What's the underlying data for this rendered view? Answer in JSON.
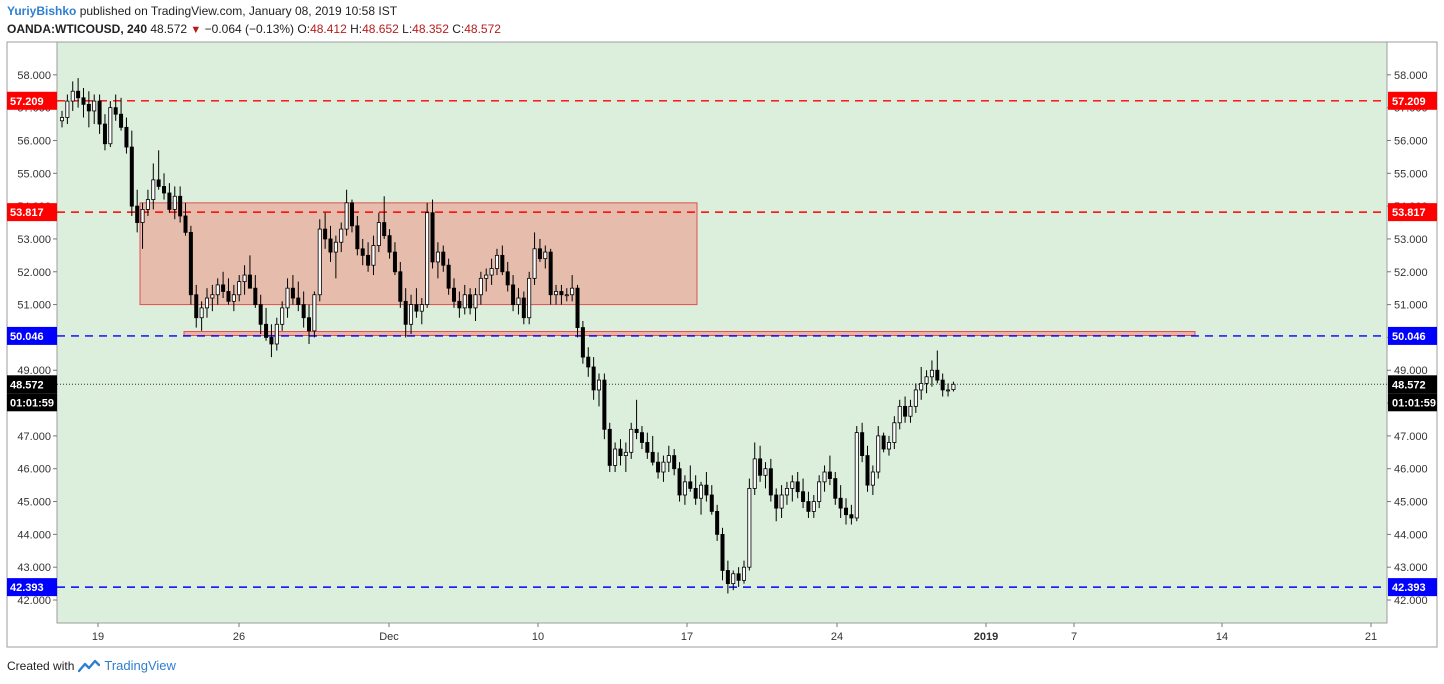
{
  "header": {
    "author": "YuriyBishko",
    "published": "published on TradingView.com, January 08, 2019 10:58 IST",
    "symbol": "OANDA:WTICOUSD, 240",
    "last": "48.572",
    "change": "−0.064 (−0.13%)",
    "o_label": "O:",
    "o_value": "48.412",
    "h_label": "H:",
    "h_value": "48.652",
    "l_label": "L:",
    "l_value": "48.352",
    "c_label": "C:",
    "c_value": "48.572"
  },
  "footer": {
    "created_with": "Created with",
    "brand": "TradingView"
  },
  "colors": {
    "background": "#dcefdc",
    "resistance": "#ff0000",
    "support": "#0000ff",
    "zone_fill": "#e8b4a4",
    "zone_stroke": "#e05050",
    "bull_body": "#ffffff",
    "bear_body": "#000000",
    "wick": "#000000",
    "last_label": "#000000"
  },
  "chart_data": {
    "type": "candlestick",
    "instrument": "OANDA:WTICOUSD",
    "timeframe": "240",
    "ylim": [
      41.3,
      59.0
    ],
    "y_ticks": [
      "42.000",
      "43.000",
      "44.000",
      "45.000",
      "46.000",
      "47.000",
      "48.000",
      "49.000",
      "50.000",
      "51.000",
      "52.000",
      "53.000",
      "54.000",
      "55.000",
      "56.000",
      "57.000",
      "58.000"
    ],
    "x_ticks": [
      "19",
      "26",
      "Dec",
      "10",
      "17",
      "24",
      "2019",
      "7",
      "14",
      "21"
    ],
    "x_tick_bold": [
      "2019"
    ],
    "grid": false,
    "horizontal_levels": [
      {
        "value": "57.209",
        "kind": "resistance"
      },
      {
        "value": "53.817",
        "kind": "resistance"
      },
      {
        "value": "50.046",
        "kind": "support"
      },
      {
        "value": "42.393",
        "kind": "support"
      }
    ],
    "last_price_label": "48.572",
    "countdown_label": "01:01:59",
    "zones": [
      {
        "x_from": "Nov 21",
        "x_to": "Dec 17",
        "y_low": 51.0,
        "y_high": 54.1,
        "note": "consolidation range"
      },
      {
        "x_from": "Nov 23",
        "x_to": "Jan 12",
        "y_low": 50.0,
        "y_high": 50.15,
        "note": "support strip"
      }
    ],
    "candles": [
      [
        56.6,
        56.9,
        56.4,
        56.7
      ],
      [
        56.7,
        57.4,
        56.5,
        57.2
      ],
      [
        57.2,
        57.8,
        56.9,
        57.5
      ],
      [
        57.5,
        57.9,
        57.0,
        57.3
      ],
      [
        57.3,
        57.6,
        56.7,
        57.1
      ],
      [
        57.1,
        57.5,
        56.4,
        56.9
      ],
      [
        56.9,
        57.4,
        56.5,
        57.2
      ],
      [
        57.2,
        57.4,
        56.2,
        56.5
      ],
      [
        56.5,
        56.8,
        55.7,
        55.9
      ],
      [
        55.9,
        57.2,
        55.8,
        57.0
      ],
      [
        57.0,
        57.4,
        56.6,
        56.8
      ],
      [
        56.8,
        57.3,
        56.3,
        56.4
      ],
      [
        56.4,
        56.7,
        55.6,
        55.8
      ],
      [
        55.8,
        56.3,
        53.7,
        54.0
      ],
      [
        54.0,
        54.5,
        53.2,
        53.5
      ],
      [
        53.5,
        54.1,
        52.7,
        53.9
      ],
      [
        53.9,
        54.5,
        53.7,
        54.2
      ],
      [
        54.2,
        55.3,
        53.9,
        54.8
      ],
      [
        54.8,
        55.7,
        54.5,
        54.6
      ],
      [
        54.6,
        55.0,
        54.2,
        54.4
      ],
      [
        54.4,
        54.7,
        53.8,
        53.9
      ],
      [
        53.9,
        54.6,
        53.6,
        54.3
      ],
      [
        54.3,
        54.6,
        53.5,
        53.7
      ],
      [
        53.7,
        54.1,
        53.1,
        53.2
      ],
      [
        53.2,
        53.4,
        51.0,
        51.3
      ],
      [
        51.3,
        51.6,
        50.3,
        50.6
      ],
      [
        50.6,
        51.1,
        50.2,
        50.9
      ],
      [
        50.9,
        51.5,
        50.6,
        51.2
      ],
      [
        51.2,
        51.6,
        50.8,
        51.3
      ],
      [
        51.3,
        51.8,
        51.0,
        51.6
      ],
      [
        51.6,
        52.0,
        51.2,
        51.4
      ],
      [
        51.4,
        51.8,
        51.0,
        51.1
      ],
      [
        51.1,
        51.6,
        50.8,
        51.3
      ],
      [
        51.3,
        51.9,
        51.1,
        51.7
      ],
      [
        51.7,
        52.2,
        51.3,
        51.9
      ],
      [
        51.9,
        52.5,
        51.6,
        51.5
      ],
      [
        51.5,
        51.9,
        50.9,
        51.0
      ],
      [
        51.0,
        51.3,
        50.1,
        50.4
      ],
      [
        50.4,
        50.9,
        49.9,
        50.0
      ],
      [
        50.0,
        50.4,
        49.4,
        49.8
      ],
      [
        49.8,
        50.6,
        49.6,
        50.4
      ],
      [
        50.4,
        51.1,
        50.2,
        50.9
      ],
      [
        50.9,
        51.8,
        50.6,
        51.5
      ],
      [
        51.5,
        51.9,
        51.0,
        51.2
      ],
      [
        51.2,
        51.7,
        50.8,
        51.0
      ],
      [
        51.0,
        51.4,
        50.3,
        50.6
      ],
      [
        50.6,
        51.0,
        49.8,
        50.2
      ],
      [
        50.2,
        51.4,
        50.0,
        51.3
      ],
      [
        51.3,
        53.6,
        51.1,
        53.3
      ],
      [
        53.3,
        53.8,
        52.7,
        53.0
      ],
      [
        53.0,
        53.4,
        52.3,
        52.6
      ],
      [
        52.6,
        53.1,
        51.8,
        52.9
      ],
      [
        52.9,
        53.5,
        52.6,
        53.3
      ],
      [
        53.3,
        54.5,
        53.1,
        54.1
      ],
      [
        54.1,
        54.2,
        53.2,
        53.4
      ],
      [
        53.4,
        53.7,
        52.5,
        52.7
      ],
      [
        52.7,
        53.0,
        52.2,
        52.5
      ],
      [
        52.5,
        52.9,
        52.0,
        52.2
      ],
      [
        52.2,
        53.1,
        51.9,
        52.8
      ],
      [
        52.8,
        53.8,
        52.6,
        53.5
      ],
      [
        53.5,
        54.3,
        53.0,
        53.1
      ],
      [
        53.1,
        53.3,
        52.4,
        52.6
      ],
      [
        52.6,
        52.9,
        51.9,
        52.0
      ],
      [
        52.0,
        52.3,
        50.9,
        51.1
      ],
      [
        51.1,
        51.5,
        50.0,
        50.4
      ],
      [
        50.4,
        51.3,
        50.1,
        51.0
      ],
      [
        51.0,
        51.5,
        50.6,
        50.8
      ],
      [
        50.8,
        51.2,
        50.4,
        51.0
      ],
      [
        51.0,
        54.1,
        50.9,
        53.8
      ],
      [
        53.8,
        54.2,
        52.1,
        52.3
      ],
      [
        52.3,
        52.9,
        51.8,
        52.6
      ],
      [
        52.6,
        52.8,
        52.0,
        52.2
      ],
      [
        52.2,
        52.4,
        51.3,
        51.5
      ],
      [
        51.5,
        51.8,
        50.9,
        51.1
      ],
      [
        51.1,
        51.4,
        50.6,
        50.9
      ],
      [
        50.9,
        51.6,
        50.7,
        51.3
      ],
      [
        51.3,
        51.5,
        50.7,
        50.9
      ],
      [
        50.9,
        51.5,
        50.5,
        51.3
      ],
      [
        51.3,
        52.0,
        51.0,
        51.8
      ],
      [
        51.8,
        52.1,
        51.4,
        51.9
      ],
      [
        51.9,
        52.4,
        51.6,
        52.1
      ],
      [
        52.1,
        52.7,
        51.9,
        52.5
      ],
      [
        52.5,
        52.8,
        51.9,
        52.0
      ],
      [
        52.0,
        52.3,
        51.4,
        51.6
      ],
      [
        51.6,
        51.9,
        50.8,
        51.0
      ],
      [
        51.0,
        51.5,
        50.7,
        51.2
      ],
      [
        51.2,
        51.4,
        50.4,
        50.6
      ],
      [
        50.6,
        52.0,
        50.4,
        51.8
      ],
      [
        51.8,
        53.2,
        51.6,
        52.7
      ],
      [
        52.7,
        53.0,
        52.3,
        52.4
      ],
      [
        52.4,
        52.8,
        52.1,
        52.6
      ],
      [
        52.6,
        52.7,
        51.0,
        51.3
      ],
      [
        51.3,
        51.6,
        51.0,
        51.4
      ],
      [
        51.4,
        51.6,
        51.0,
        51.3
      ],
      [
        51.3,
        51.5,
        51.1,
        51.3
      ],
      [
        51.3,
        51.9,
        51.1,
        51.5
      ],
      [
        51.5,
        51.6,
        50.0,
        50.3
      ],
      [
        50.3,
        50.5,
        49.2,
        49.4
      ],
      [
        49.4,
        49.7,
        48.8,
        49.1
      ],
      [
        49.1,
        49.4,
        48.1,
        48.4
      ],
      [
        48.4,
        48.9,
        47.9,
        48.7
      ],
      [
        48.7,
        48.9,
        46.9,
        47.2
      ],
      [
        47.2,
        47.4,
        45.9,
        46.1
      ],
      [
        46.1,
        46.8,
        45.9,
        46.6
      ],
      [
        46.6,
        46.9,
        46.1,
        46.4
      ],
      [
        46.4,
        46.8,
        45.9,
        46.5
      ],
      [
        46.5,
        47.4,
        46.3,
        47.2
      ],
      [
        47.2,
        48.1,
        46.9,
        47.1
      ],
      [
        47.1,
        47.3,
        46.6,
        46.8
      ],
      [
        46.8,
        47.1,
        46.3,
        46.5
      ],
      [
        46.5,
        47.0,
        46.1,
        46.2
      ],
      [
        46.2,
        46.5,
        45.7,
        45.9
      ],
      [
        45.9,
        46.4,
        45.6,
        46.2
      ],
      [
        46.2,
        46.7,
        45.9,
        46.4
      ],
      [
        46.4,
        46.6,
        45.8,
        46.0
      ],
      [
        46.0,
        46.2,
        45.0,
        45.2
      ],
      [
        45.2,
        45.8,
        44.9,
        45.6
      ],
      [
        45.6,
        46.1,
        45.3,
        45.4
      ],
      [
        45.4,
        45.8,
        44.9,
        45.1
      ],
      [
        45.1,
        45.6,
        44.6,
        45.5
      ],
      [
        45.5,
        45.9,
        45.0,
        45.2
      ],
      [
        45.2,
        45.5,
        44.6,
        44.7
      ],
      [
        44.7,
        44.9,
        43.8,
        44.0
      ],
      [
        44.0,
        44.2,
        42.6,
        42.9
      ],
      [
        42.9,
        43.2,
        42.2,
        42.5
      ],
      [
        42.5,
        42.9,
        42.3,
        42.8
      ],
      [
        42.8,
        43.0,
        42.4,
        42.6
      ],
      [
        42.6,
        43.2,
        42.5,
        43.0
      ],
      [
        43.0,
        45.7,
        42.9,
        45.4
      ],
      [
        45.4,
        46.8,
        45.2,
        46.3
      ],
      [
        46.3,
        46.7,
        45.6,
        45.8
      ],
      [
        45.8,
        46.2,
        45.4,
        46.0
      ],
      [
        46.0,
        46.3,
        45.0,
        45.2
      ],
      [
        45.2,
        45.4,
        44.4,
        44.8
      ],
      [
        44.8,
        45.5,
        44.5,
        45.2
      ],
      [
        45.2,
        45.6,
        44.9,
        45.4
      ],
      [
        45.4,
        45.8,
        45.0,
        45.6
      ],
      [
        45.6,
        45.9,
        45.1,
        45.3
      ],
      [
        45.3,
        45.7,
        44.8,
        45.0
      ],
      [
        45.0,
        45.3,
        44.5,
        44.7
      ],
      [
        44.7,
        45.2,
        44.5,
        45.0
      ],
      [
        45.0,
        45.8,
        44.8,
        45.6
      ],
      [
        45.6,
        46.1,
        45.3,
        45.9
      ],
      [
        45.9,
        46.4,
        45.5,
        45.7
      ],
      [
        45.7,
        45.9,
        44.9,
        45.1
      ],
      [
        45.1,
        45.5,
        44.5,
        44.8
      ],
      [
        44.8,
        45.1,
        44.3,
        44.6
      ],
      [
        44.6,
        44.9,
        44.3,
        44.5
      ],
      [
        44.5,
        47.3,
        44.4,
        47.1
      ],
      [
        47.1,
        47.4,
        46.2,
        46.4
      ],
      [
        46.4,
        46.7,
        45.3,
        45.5
      ],
      [
        45.5,
        46.1,
        45.2,
        45.9
      ],
      [
        45.9,
        47.3,
        45.7,
        47.0
      ],
      [
        47.0,
        47.1,
        46.5,
        46.6
      ],
      [
        46.6,
        47.0,
        46.4,
        46.8
      ],
      [
        46.8,
        47.6,
        46.6,
        47.4
      ],
      [
        47.4,
        48.1,
        47.2,
        47.9
      ],
      [
        47.9,
        48.2,
        47.4,
        47.6
      ],
      [
        47.6,
        48.1,
        47.4,
        47.9
      ],
      [
        47.9,
        48.6,
        47.7,
        48.4
      ],
      [
        48.4,
        49.1,
        48.1,
        48.6
      ],
      [
        48.6,
        49.0,
        48.3,
        48.8
      ],
      [
        48.8,
        49.3,
        48.5,
        49.0
      ],
      [
        49.0,
        49.6,
        48.6,
        48.7
      ],
      [
        48.7,
        48.9,
        48.2,
        48.4
      ],
      [
        48.4,
        48.6,
        48.2,
        48.4
      ],
      [
        48.412,
        48.652,
        48.352,
        48.572
      ]
    ]
  }
}
